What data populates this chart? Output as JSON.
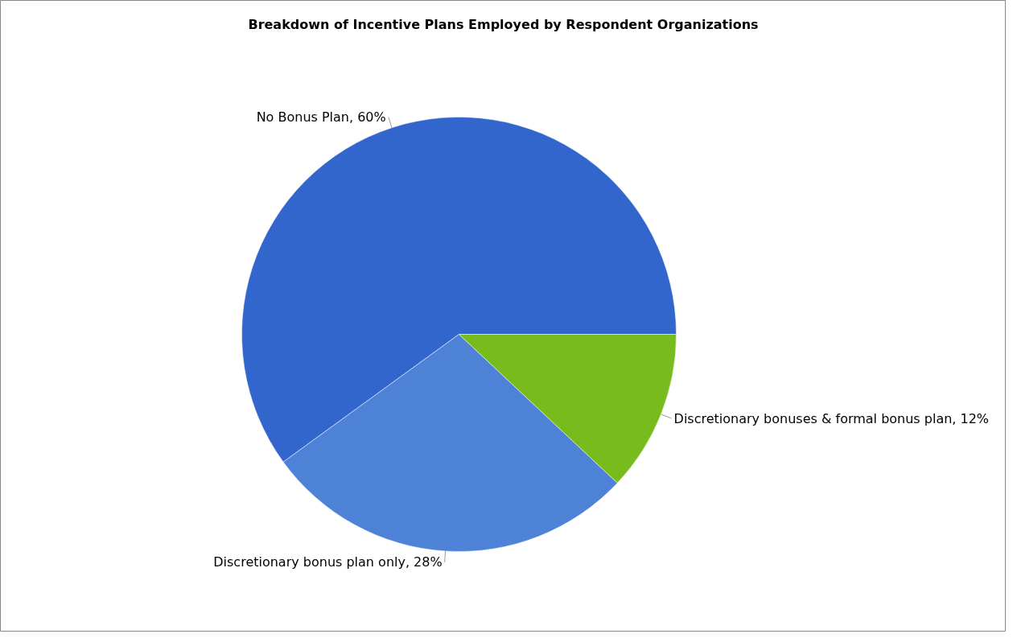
{
  "chart_data": {
    "type": "pie",
    "title": "Breakdown of Incentive Plans Employed by Respondent Organizations",
    "categories": [
      "No Bonus Plan, 60%",
      "Discretionary bonus plan only, 28%",
      "Discretionary bonuses & formal bonus plan, 12%"
    ],
    "values": [
      60,
      28,
      12
    ],
    "colors": [
      "#3366cc",
      "#4d82d6",
      "#77bb1c"
    ]
  }
}
